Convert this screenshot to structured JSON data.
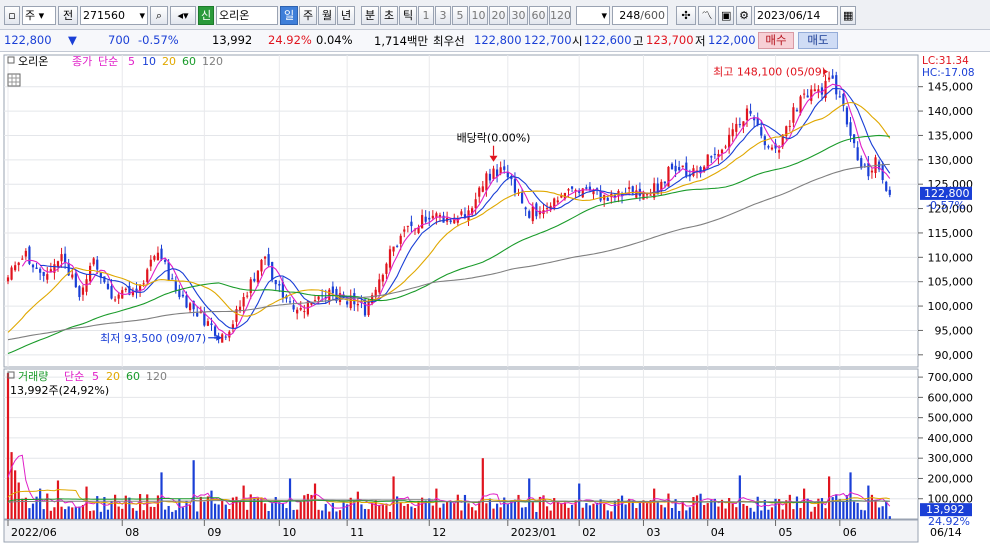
{
  "toolbar": {
    "type_value": "주",
    "jeon_label": "전",
    "code_value": "271560",
    "new_badge": "신",
    "name_value": "오리온",
    "periods": [
      "일",
      "주",
      "월",
      "년",
      "분",
      "초",
      "틱"
    ],
    "minutes": [
      "1",
      "3",
      "5",
      "10",
      "20",
      "30",
      "60",
      "120"
    ],
    "count_value": "248",
    "count_total": "/600",
    "date_value": "2023/06/14"
  },
  "quote": {
    "price": "122,800",
    "arrow": "▼",
    "change": "700",
    "change_pct": "-0.57%",
    "volume": "13,992",
    "vol_ratio": "24.92%",
    "turnover_rate": "0.04%",
    "amount": "1,714백만",
    "best_label": "최우선",
    "best_ask": "122,800",
    "best_bid": "122,700",
    "open_label": "시",
    "open": "122,600",
    "high_label": "고",
    "high": "123,700",
    "low_label": "저",
    "low": "122,000",
    "buy_label": "매수",
    "sell_label": "매도"
  },
  "colors": {
    "up": "#e0141e",
    "down": "#1a3fd6",
    "ma5": "#e020c8",
    "ma10": "#1a3fd6",
    "ma20": "#e0a800",
    "ma60": "#1a9b2a",
    "ma120": "#808080"
  },
  "chart_data": [
    {
      "type": "candlestick",
      "title": "오리온",
      "legend": {
        "price_label": "종가",
        "ma_label": "단순",
        "periods": [
          "5",
          "10",
          "20",
          "60",
          "120"
        ]
      },
      "y_ticks": [
        145000,
        140000,
        135000,
        130000,
        125000,
        120000,
        115000,
        110000,
        105000,
        100000,
        95000,
        90000
      ],
      "ylim": [
        87500,
        151500
      ],
      "current_price": 122800,
      "current_price_label": "122,800",
      "current_change_label": "-0.57%",
      "lc_label": "LC:31.34",
      "hc_label": "HC:-17.08",
      "annotations": {
        "high": {
          "label": "최고 148,100 (05/09)",
          "value": 148100
        },
        "low": {
          "label": "최저 93,500 (09/07)",
          "value": 93500
        },
        "dividend": {
          "label": "배당락(0.00%)"
        }
      },
      "x_ticks": [
        "2022/06",
        "08",
        "09",
        "10",
        "11",
        "12",
        "2023/01",
        "02",
        "03",
        "04",
        "05",
        "06"
      ],
      "end_date": "06/14",
      "close_series": [
        {
          "t": 0,
          "v": 106000
        },
        {
          "t": 5,
          "v": 110500
        },
        {
          "t": 10,
          "v": 105500
        },
        {
          "t": 15,
          "v": 110000
        },
        {
          "t": 20,
          "v": 103000
        },
        {
          "t": 24,
          "v": 108500
        },
        {
          "t": 30,
          "v": 101000
        },
        {
          "t": 37,
          "v": 104500
        },
        {
          "t": 42,
          "v": 111000
        },
        {
          "t": 47,
          "v": 103000
        },
        {
          "t": 55,
          "v": 97000
        },
        {
          "t": 60,
          "v": 93500
        },
        {
          "t": 63,
          "v": 96500
        },
        {
          "t": 68,
          "v": 104500
        },
        {
          "t": 72,
          "v": 110000
        },
        {
          "t": 76,
          "v": 103000
        },
        {
          "t": 82,
          "v": 99000
        },
        {
          "t": 88,
          "v": 103000
        },
        {
          "t": 95,
          "v": 101500
        },
        {
          "t": 100,
          "v": 99000
        },
        {
          "t": 103,
          "v": 104000
        },
        {
          "t": 107,
          "v": 110500
        },
        {
          "t": 112,
          "v": 116000
        },
        {
          "t": 118,
          "v": 118500
        },
        {
          "t": 124,
          "v": 117500
        },
        {
          "t": 130,
          "v": 120000
        },
        {
          "t": 134,
          "v": 126500
        },
        {
          "t": 138,
          "v": 127500
        },
        {
          "t": 142,
          "v": 124500
        },
        {
          "t": 145,
          "v": 119000
        },
        {
          "t": 150,
          "v": 120000
        },
        {
          "t": 156,
          "v": 123000
        },
        {
          "t": 162,
          "v": 124000
        },
        {
          "t": 168,
          "v": 121500
        },
        {
          "t": 175,
          "v": 123500
        },
        {
          "t": 182,
          "v": 124000
        },
        {
          "t": 186,
          "v": 128500
        },
        {
          "t": 192,
          "v": 127000
        },
        {
          "t": 198,
          "v": 131500
        },
        {
          "t": 204,
          "v": 136500
        },
        {
          "t": 207,
          "v": 140500
        },
        {
          "t": 212,
          "v": 134000
        },
        {
          "t": 216,
          "v": 132500
        },
        {
          "t": 220,
          "v": 140000
        },
        {
          "t": 224,
          "v": 143500
        },
        {
          "t": 228,
          "v": 144500
        },
        {
          "t": 231,
          "v": 146500
        },
        {
          "t": 233,
          "v": 142000
        },
        {
          "t": 236,
          "v": 136000
        },
        {
          "t": 238,
          "v": 129500
        },
        {
          "t": 241,
          "v": 127500
        },
        {
          "t": 243,
          "v": 130000
        },
        {
          "t": 245,
          "v": 126500
        },
        {
          "t": 247,
          "v": 122800
        }
      ]
    },
    {
      "type": "bar",
      "title": "거래량",
      "legend": {
        "ma_label": "단순",
        "periods": [
          "5",
          "20",
          "60",
          "120"
        ]
      },
      "current_label": "13,992주(24,92%)",
      "current_value": 13992,
      "current_value_label": "13,992",
      "current_pct_label": "24.92%",
      "y_ticks": [
        700000,
        600000,
        500000,
        400000,
        300000,
        200000,
        100000
      ],
      "ylim": [
        0,
        740000
      ],
      "spikes": [
        {
          "t": 0,
          "v": 720000
        },
        {
          "t": 1,
          "v": 330000
        },
        {
          "t": 2,
          "v": 240000
        },
        {
          "t": 3,
          "v": 180000
        },
        {
          "t": 9,
          "v": 150000
        },
        {
          "t": 14,
          "v": 190000
        },
        {
          "t": 22,
          "v": 160000
        },
        {
          "t": 43,
          "v": 230000
        },
        {
          "t": 52,
          "v": 290000
        },
        {
          "t": 57,
          "v": 140000
        },
        {
          "t": 66,
          "v": 165000
        },
        {
          "t": 79,
          "v": 200000
        },
        {
          "t": 86,
          "v": 175000
        },
        {
          "t": 98,
          "v": 135000
        },
        {
          "t": 108,
          "v": 210000
        },
        {
          "t": 120,
          "v": 150000
        },
        {
          "t": 133,
          "v": 300000
        },
        {
          "t": 146,
          "v": 200000
        },
        {
          "t": 160,
          "v": 175000
        },
        {
          "t": 181,
          "v": 150000
        },
        {
          "t": 205,
          "v": 215000
        },
        {
          "t": 223,
          "v": 150000
        },
        {
          "t": 230,
          "v": 210000
        },
        {
          "t": 236,
          "v": 230000
        },
        {
          "t": 241,
          "v": 165000
        }
      ],
      "base_volume": 85000
    }
  ]
}
